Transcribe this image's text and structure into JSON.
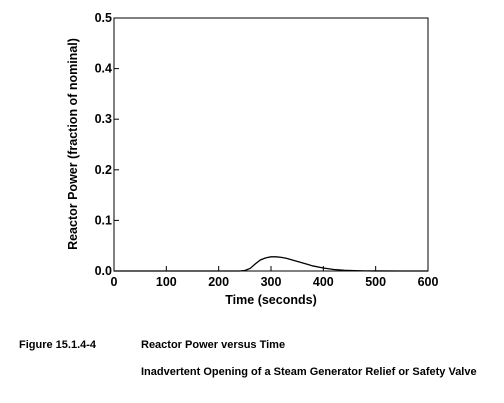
{
  "chart_data": {
    "type": "line",
    "xlabel": "Time (seconds)",
    "ylabel": "Reactor Power (fraction of nominal)",
    "xlim": [
      0,
      600
    ],
    "ylim": [
      0,
      0.5
    ],
    "x_ticks": [
      0,
      100,
      200,
      300,
      400,
      500,
      600
    ],
    "y_ticks": [
      0.0,
      0.1,
      0.2,
      0.3,
      0.4,
      0.5
    ],
    "x_tick_labels": [
      "0",
      "100",
      "200",
      "300",
      "400",
      "500",
      "600"
    ],
    "y_tick_labels": [
      "0.0",
      "0.1",
      "0.2",
      "0.3",
      "0.4",
      "0.5"
    ],
    "grid": false,
    "series": [
      {
        "color": "#000000",
        "x": [
          0,
          100,
          200,
          240,
          250,
          260,
          270,
          280,
          290,
          300,
          310,
          320,
          330,
          340,
          350,
          360,
          370,
          380,
          400,
          420,
          440,
          460,
          480,
          500,
          550,
          600
        ],
        "y": [
          0.0,
          0.0,
          0.0,
          0.0,
          0.001,
          0.005,
          0.014,
          0.022,
          0.026,
          0.028,
          0.028,
          0.027,
          0.025,
          0.022,
          0.019,
          0.016,
          0.013,
          0.01,
          0.006,
          0.003,
          0.0015,
          0.0008,
          0.0003,
          0.0001,
          0.0,
          0.0
        ]
      }
    ]
  },
  "caption": {
    "figure_number": "Figure 15.1.4-4",
    "title": "Reactor Power versus Time",
    "subtitle": "Inadvertent Opening of a Steam Generator Relief or Safety Valve"
  }
}
